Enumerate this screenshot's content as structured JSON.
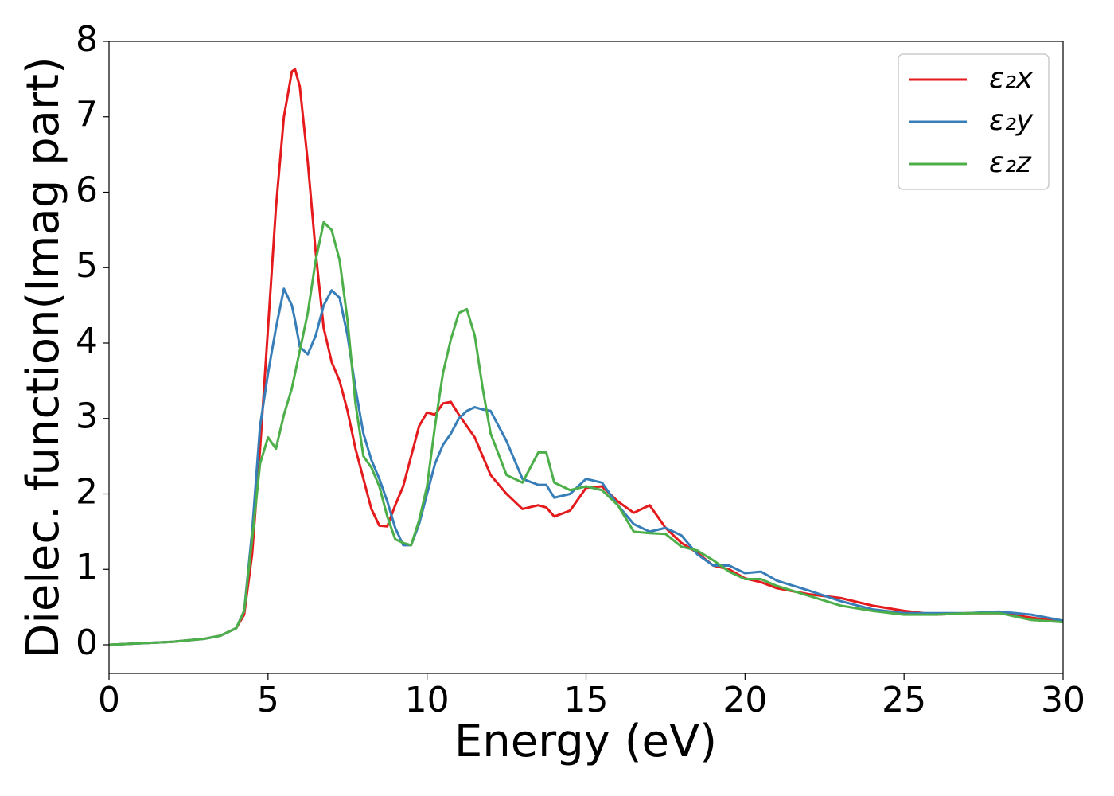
{
  "chart_data": {
    "type": "line",
    "xlabel": "Energy (eV)",
    "ylabel": "Dielec. function(Imag part)",
    "xlim": [
      0,
      30
    ],
    "ylim": [
      -0.38,
      8
    ],
    "xticks": [
      0,
      5,
      10,
      15,
      20,
      25,
      30
    ],
    "yticks": [
      0,
      1,
      2,
      3,
      4,
      5,
      6,
      7,
      8
    ],
    "legend": "upper right",
    "x": [
      0,
      1,
      2,
      3,
      3.5,
      4,
      4.25,
      4.5,
      4.75,
      5,
      5.25,
      5.5,
      5.75,
      5.85,
      6,
      6.25,
      6.5,
      6.75,
      7,
      7.25,
      7.5,
      7.75,
      8,
      8.25,
      8.5,
      8.75,
      9,
      9.25,
      9.5,
      9.75,
      10,
      10.25,
      10.5,
      10.75,
      11,
      11.25,
      11.5,
      11.75,
      12,
      12.5,
      13,
      13.5,
      13.75,
      14,
      14.5,
      15,
      15.5,
      16,
      16.5,
      17,
      17.5,
      18,
      18.5,
      19,
      19.5,
      20,
      20.5,
      21,
      22,
      23,
      24,
      25,
      26,
      27,
      28,
      29,
      30
    ],
    "series": [
      {
        "name": "ε₂x",
        "color": "#e41a1c",
        "values": [
          0,
          0.02,
          0.04,
          0.08,
          0.12,
          0.22,
          0.4,
          1.2,
          2.6,
          4.2,
          5.8,
          7.0,
          7.6,
          7.63,
          7.4,
          6.4,
          5.2,
          4.2,
          3.75,
          3.5,
          3.1,
          2.6,
          2.2,
          1.8,
          1.58,
          1.57,
          1.85,
          2.1,
          2.5,
          2.9,
          3.08,
          3.05,
          3.2,
          3.22,
          3.05,
          2.9,
          2.75,
          2.5,
          2.25,
          2.0,
          1.8,
          1.85,
          1.82,
          1.7,
          1.78,
          2.08,
          2.1,
          1.9,
          1.75,
          1.85,
          1.55,
          1.35,
          1.22,
          1.05,
          1.0,
          0.88,
          0.83,
          0.75,
          0.67,
          0.62,
          0.52,
          0.45,
          0.4,
          0.42,
          0.42,
          0.36,
          0.3
        ]
      },
      {
        "name": "ε₂y",
        "color": "#377eb8",
        "values": [
          0,
          0.02,
          0.04,
          0.08,
          0.12,
          0.22,
          0.45,
          1.5,
          2.9,
          3.6,
          4.2,
          4.72,
          4.5,
          4.3,
          3.95,
          3.85,
          4.1,
          4.5,
          4.7,
          4.6,
          4.1,
          3.4,
          2.8,
          2.45,
          2.2,
          1.9,
          1.55,
          1.32,
          1.32,
          1.6,
          2.0,
          2.4,
          2.65,
          2.8,
          3.0,
          3.1,
          3.15,
          3.12,
          3.1,
          2.7,
          2.2,
          2.12,
          2.12,
          1.95,
          2.0,
          2.2,
          2.15,
          1.85,
          1.6,
          1.5,
          1.55,
          1.45,
          1.2,
          1.05,
          1.05,
          0.95,
          0.97,
          0.85,
          0.72,
          0.58,
          0.47,
          0.42,
          0.42,
          0.42,
          0.44,
          0.4,
          0.32
        ]
      },
      {
        "name": "ε₂z",
        "color": "#4daf4a",
        "values": [
          0,
          0.02,
          0.04,
          0.08,
          0.12,
          0.22,
          0.45,
          1.4,
          2.4,
          2.75,
          2.6,
          3.05,
          3.4,
          3.6,
          3.9,
          4.4,
          5.1,
          5.6,
          5.5,
          5.1,
          4.3,
          3.2,
          2.5,
          2.35,
          2.1,
          1.7,
          1.4,
          1.35,
          1.32,
          1.65,
          2.1,
          2.9,
          3.6,
          4.05,
          4.4,
          4.45,
          4.1,
          3.4,
          2.8,
          2.25,
          2.15,
          2.55,
          2.55,
          2.15,
          2.05,
          2.1,
          2.05,
          1.85,
          1.5,
          1.48,
          1.47,
          1.3,
          1.25,
          1.12,
          0.97,
          0.87,
          0.87,
          0.78,
          0.65,
          0.52,
          0.45,
          0.4,
          0.4,
          0.42,
          0.42,
          0.33,
          0.3
        ]
      }
    ]
  }
}
